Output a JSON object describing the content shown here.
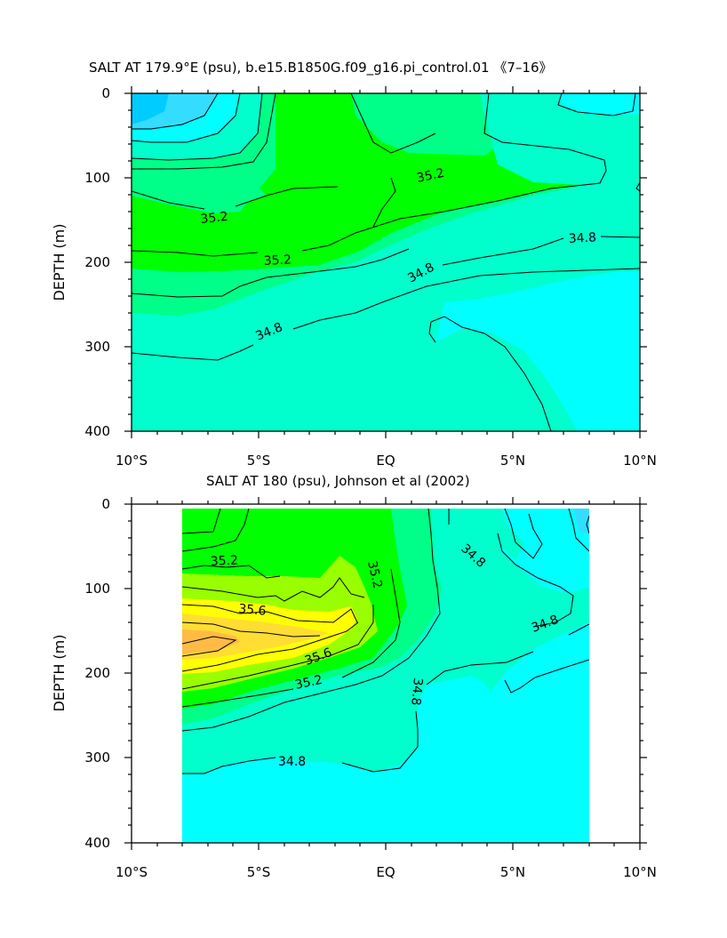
{
  "chart_data": [
    {
      "type": "contour",
      "title": "SALT AT 179.9°E (psu), b.e15.B1850G.f09_g16.pi_control.01 《7–16》",
      "ylabel": "DEPTH (m)",
      "xlabel": "",
      "xlim": [
        -10,
        10
      ],
      "ylim": [
        400,
        0
      ],
      "x_ticks": [
        "10°S",
        "5°S",
        "EQ",
        "5°N",
        "10°N"
      ],
      "y_ticks": [
        "0",
        "100",
        "200",
        "300",
        "400"
      ],
      "contour_labels": [
        "35.2",
        "35.2",
        "35.2",
        "34.8",
        "34.8",
        "34.8"
      ],
      "colors": {
        "34.6": "#00ffff",
        "34.8": "#00ffcc",
        "35.0": "#00ff88",
        "35.2": "#00ff00",
        "34.4": "#33ddff",
        "34.2": "#00ccff"
      }
    },
    {
      "type": "contour",
      "title": "SALT AT 180 (psu), Johnson et al (2002)",
      "ylabel": "DEPTH (m)",
      "xlabel": "",
      "xlim": [
        -10,
        10
      ],
      "ylim": [
        400,
        0
      ],
      "data_extent_x": [
        -8,
        8
      ],
      "x_ticks": [
        "10°S",
        "5°S",
        "EQ",
        "5°N",
        "10°N"
      ],
      "y_ticks": [
        "0",
        "100",
        "200",
        "300",
        "400"
      ],
      "contour_labels": [
        "35.2",
        "35.2",
        "35.6",
        "35.6",
        "35.2",
        "34.8",
        "34.8",
        "34.8",
        "34.8"
      ],
      "colors": {
        "34.6": "#00ffff",
        "34.8": "#00ffcc",
        "35.0": "#00ff88",
        "35.2": "#00ff00",
        "35.4": "#99ff00",
        "35.6": "#ffff00",
        "35.8": "#ffdd33",
        "36.0": "#ffbb44",
        "34.4": "#33ddff"
      }
    }
  ]
}
